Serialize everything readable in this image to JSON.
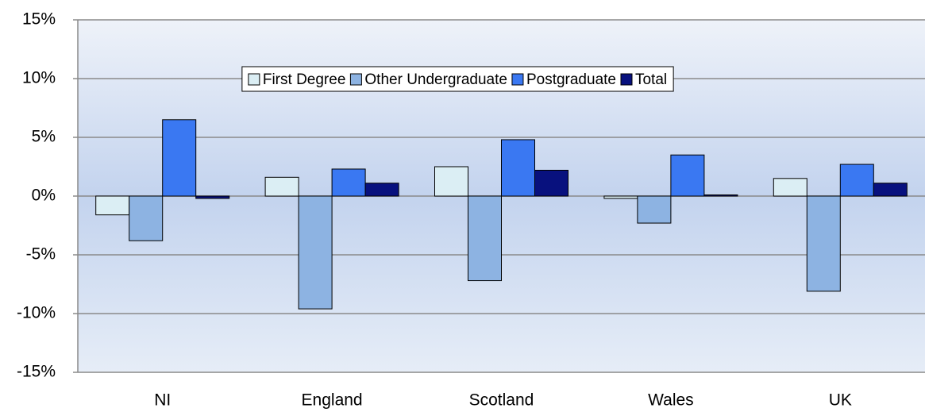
{
  "chart_data": {
    "type": "bar",
    "categories": [
      "NI",
      "England",
      "Scotland",
      "Wales",
      "UK"
    ],
    "series": [
      {
        "name": "First Degree",
        "color": "#dbeef4",
        "values": [
          -1.6,
          1.6,
          2.5,
          -0.2,
          1.5
        ]
      },
      {
        "name": "Other Undergraduate",
        "color": "#8db3e2",
        "values": [
          -3.8,
          -9.6,
          -7.2,
          -2.3,
          -8.1
        ]
      },
      {
        "name": "Postgraduate",
        "color": "#3a78f2",
        "values": [
          6.5,
          2.3,
          4.8,
          3.5,
          2.7
        ]
      },
      {
        "name": "Total",
        "color": "#08117e",
        "values": [
          -0.2,
          1.1,
          2.2,
          0.1,
          1.1
        ]
      }
    ],
    "ylim": [
      -15,
      15
    ],
    "yticks": [
      {
        "value": -15,
        "label": "-15%"
      },
      {
        "value": -10,
        "label": "-10%"
      },
      {
        "value": -5,
        "label": "-5%"
      },
      {
        "value": 0,
        "label": "0%"
      },
      {
        "value": 5,
        "label": "5%"
      },
      {
        "value": 10,
        "label": "10%"
      },
      {
        "value": 15,
        "label": "15%"
      }
    ],
    "grid": true,
    "legend": "top"
  }
}
